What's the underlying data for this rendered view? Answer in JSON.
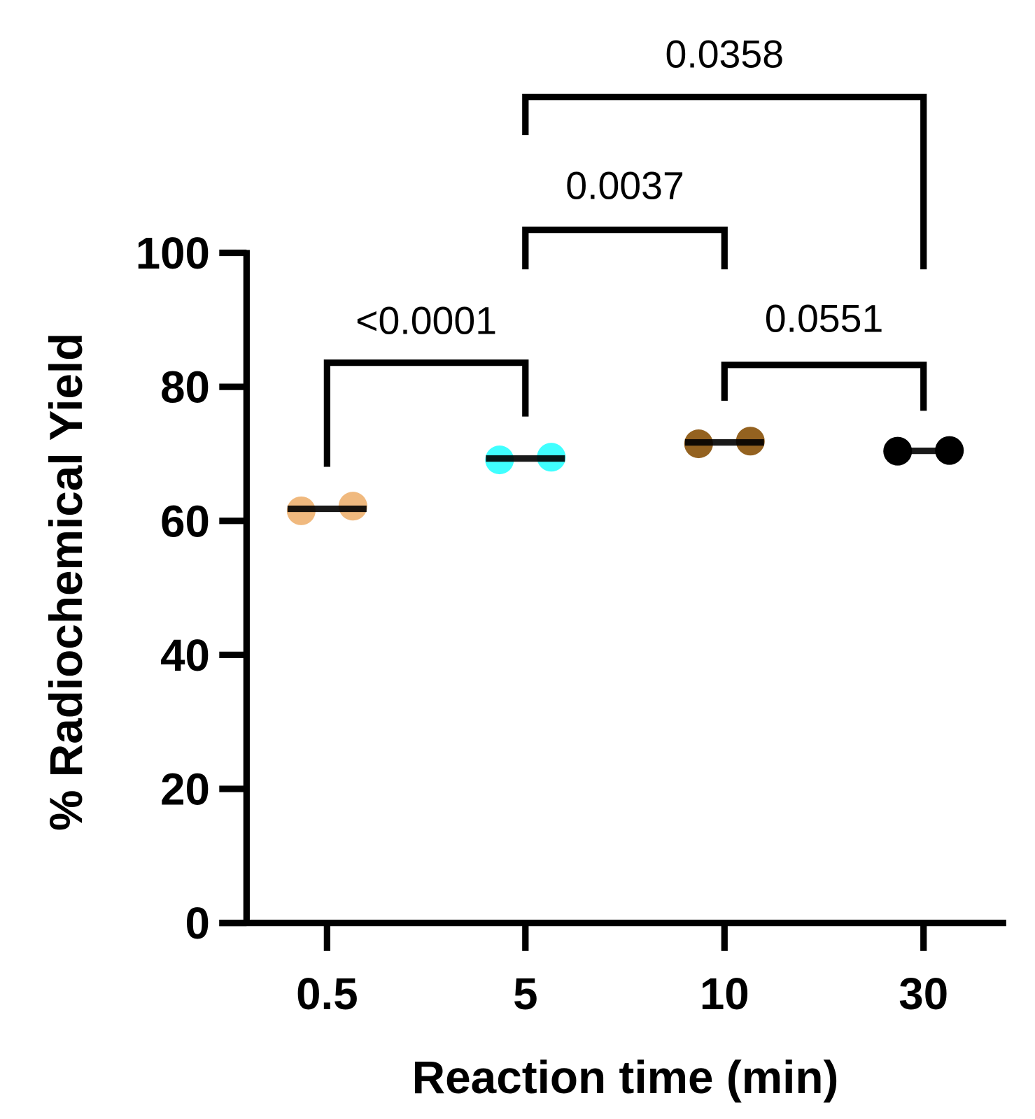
{
  "chart_data": {
    "type": "scatter",
    "title": "",
    "xlabel": "Reaction time (min)",
    "ylabel": "% Radiochemical Yield",
    "ylim": [
      0,
      100
    ],
    "yticks": [
      "0",
      "20",
      "40",
      "60",
      "80",
      "100"
    ],
    "categories": [
      "0.5",
      "5",
      "10",
      "30"
    ],
    "series": [
      {
        "name": "0.5",
        "color": "#F0B97E",
        "values": [
          61.5,
          62.2
        ],
        "mean": 61.8
      },
      {
        "name": "5",
        "color": "#40FFFF",
        "values": [
          69.1,
          69.5
        ],
        "mean": 69.3
      },
      {
        "name": "10",
        "color": "#946220",
        "values": [
          71.5,
          71.9
        ],
        "mean": 71.7
      },
      {
        "name": "30",
        "color": "#000000",
        "values": [
          70.4,
          70.5
        ],
        "mean": 70.45
      }
    ],
    "comparisons": [
      {
        "from": "0.5",
        "to": "5",
        "p": "<0.0001"
      },
      {
        "from": "5",
        "to": "10",
        "p": "0.0037"
      },
      {
        "from": "10",
        "to": "30",
        "p": "0.0551"
      },
      {
        "from": "5",
        "to": "30",
        "p": "0.0358"
      }
    ],
    "grid": false,
    "legend": "none"
  }
}
